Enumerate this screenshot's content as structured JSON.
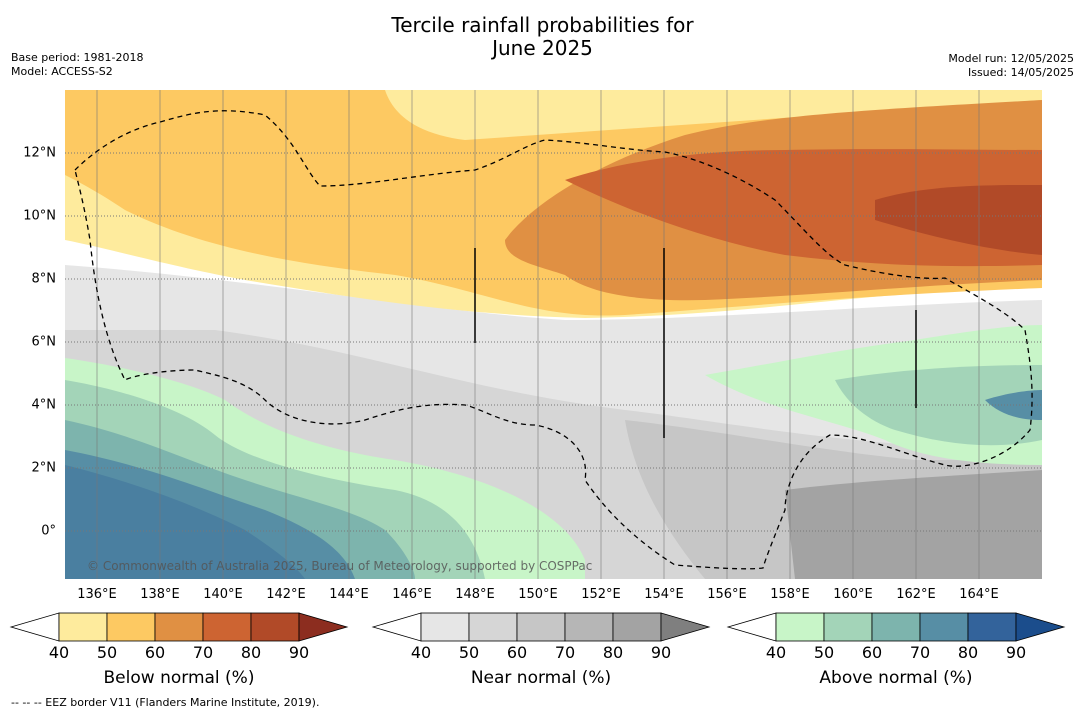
{
  "title_line1": "Tercile rainfall probabilities for",
  "title_line2": "June 2025",
  "base_period": "Base period: 1981-2018",
  "model": "Model: ACCESS-S2",
  "model_run": "Model run: 12/05/2025",
  "issued": "Issued: 14/05/2025",
  "copyright": "© Commonwealth of Australia 2025, Bureau of Meteorology, supported by COSPPac",
  "footnote": "--  --  -- EEZ border V11 (Flanders Marine Institute, 2019).",
  "longitude_ticks": [
    "136°E",
    "138°E",
    "140°E",
    "142°E",
    "144°E",
    "146°E",
    "148°E",
    "150°E",
    "152°E",
    "154°E",
    "156°E",
    "158°E",
    "160°E",
    "162°E",
    "164°E"
  ],
  "latitude_ticks": [
    "12°N",
    "10°N",
    "8°N",
    "6°N",
    "4°N",
    "2°N",
    "0°"
  ],
  "colorbars": [
    {
      "label": "Below normal (%)",
      "ticks": [
        "40",
        "50",
        "60",
        "70",
        "80",
        "90"
      ],
      "colors": [
        "#ffffff",
        "#feeb9d",
        "#fdc962",
        "#e09043",
        "#cd6432",
        "#b14a28",
        "#8c2d1f"
      ]
    },
    {
      "label": "Near normal (%)",
      "ticks": [
        "40",
        "50",
        "60",
        "70",
        "80",
        "90"
      ],
      "colors": [
        "#ffffff",
        "#e6e6e6",
        "#d6d6d6",
        "#c6c6c6",
        "#b6b6b6",
        "#a3a3a3",
        "#7f7f7f"
      ]
    },
    {
      "label": "Above normal (%)",
      "ticks": [
        "40",
        "50",
        "60",
        "70",
        "80",
        "90"
      ],
      "colors": [
        "#ffffff",
        "#c8f5c8",
        "#a3d4b8",
        "#7db4ad",
        "#578ea5",
        "#33639b",
        "#1b4d8c"
      ]
    }
  ]
}
